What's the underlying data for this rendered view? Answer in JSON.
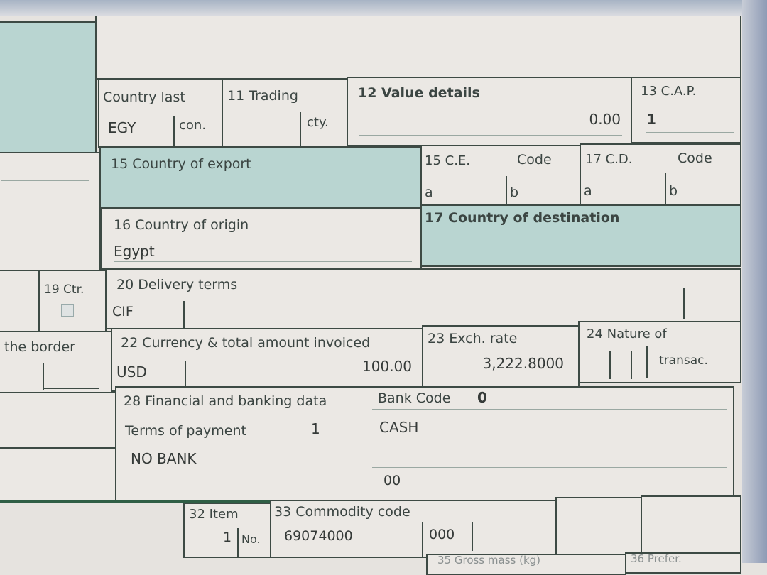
{
  "form": {
    "country_last": {
      "label": "Country last",
      "value": "EGY",
      "suffix": "con."
    },
    "trading": {
      "label": "11 Trading",
      "value": "",
      "suffix": "cty."
    },
    "value_details": {
      "label": "12 Value details",
      "value": "0.00"
    },
    "cap": {
      "label": "13 C.A.P.",
      "value": "1"
    },
    "country_export": {
      "label": "15 Country of export",
      "value": ""
    },
    "ce_code": {
      "label": "15 C.E.",
      "code_label": "Code",
      "a": "a",
      "b": "b"
    },
    "cd_code": {
      "label": "17 C.D.",
      "code_label": "Code",
      "a": "a",
      "b": "b"
    },
    "country_origin": {
      "label": "16 Country of origin",
      "value": "Egypt"
    },
    "country_destination": {
      "label": "17 Country of destination",
      "value": ""
    },
    "ctr": {
      "label": "19 Ctr."
    },
    "delivery_terms": {
      "label": "20 Delivery terms",
      "value": "CIF"
    },
    "border": {
      "label": "the border"
    },
    "currency": {
      "label": "22 Currency & total amount invoiced",
      "currency": "USD",
      "amount": "100.00"
    },
    "exch_rate": {
      "label": "23 Exch. rate",
      "value": "3,222.8000"
    },
    "nature": {
      "label": "24 Nature of",
      "suffix": "transac."
    },
    "financial": {
      "label": "28 Financial and banking data",
      "bank_code_label": "Bank Code",
      "bank_code": "0",
      "terms_label": "Terms of payment",
      "terms_value": "1",
      "terms_text": "CASH",
      "bank": "NO BANK",
      "extra": "00"
    },
    "item": {
      "label": "32 Item",
      "value": "1",
      "no_label": "No."
    },
    "commodity": {
      "label": "33 Commodity code",
      "value": "69074000",
      "suffix": "000"
    },
    "gross_mass": {
      "label": "35 Gross mass (kg)"
    },
    "prefer": {
      "label": "36 Prefer."
    }
  },
  "colors": {
    "teal": "#b9d5d1",
    "border": "#3d4a44",
    "paper": "#ebe8e4"
  }
}
